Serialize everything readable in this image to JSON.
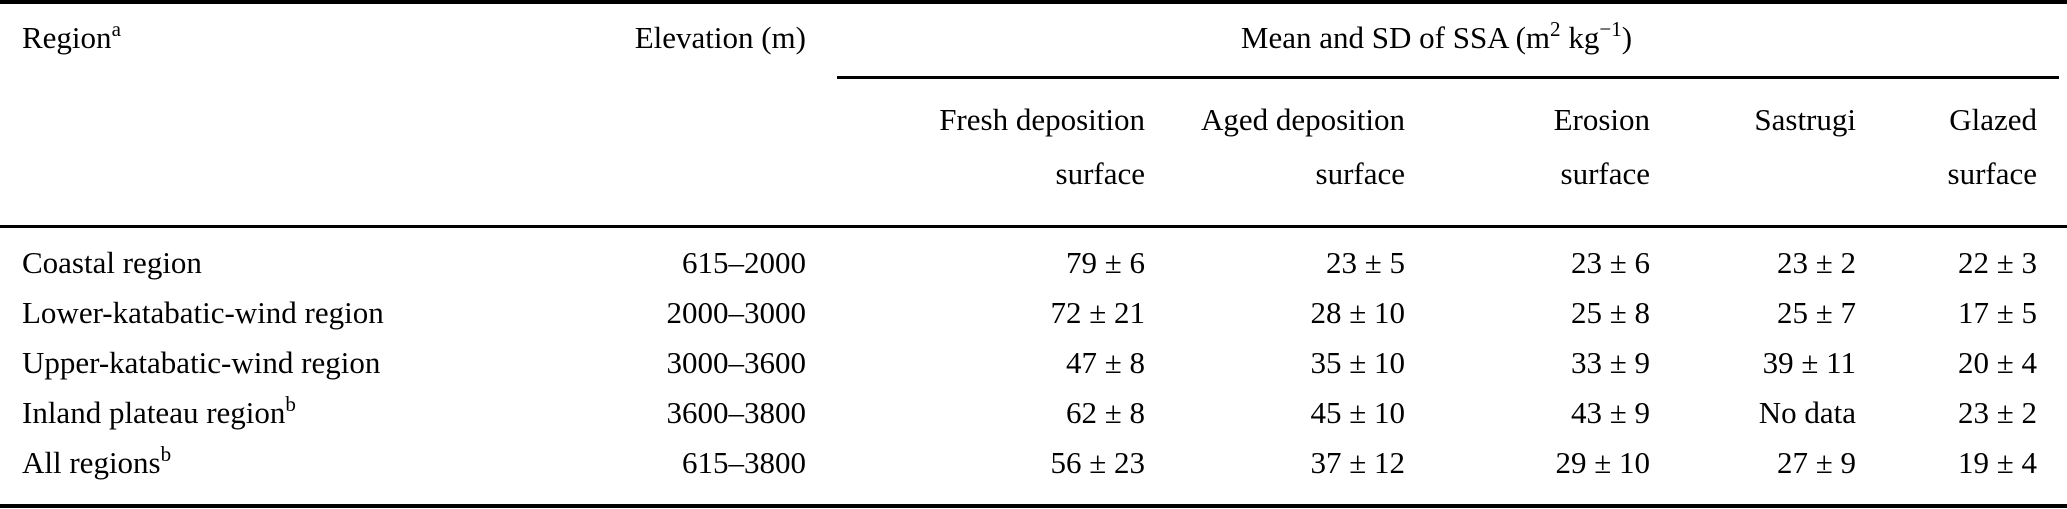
{
  "colors": {
    "text": "#000000",
    "background": "#ffffff",
    "rule": "#000000"
  },
  "table": {
    "header": {
      "region_label": "Region",
      "region_sup": "a",
      "elevation_label": "Elevation (m)",
      "ssa_group": {
        "prefix": "Mean and SD of SSA (m",
        "sup1": "2",
        "mid": " kg",
        "sup2": "−1",
        "suffix": ")"
      },
      "subcolumns": [
        {
          "line1": "Fresh deposition",
          "line2": "surface"
        },
        {
          "line1": "Aged deposition",
          "line2": "surface"
        },
        {
          "line1": "Erosion",
          "line2": "surface"
        },
        {
          "line1": "Sastrugi",
          "line2": ""
        },
        {
          "line1": "Glazed",
          "line2": "surface"
        }
      ]
    },
    "rows": [
      {
        "name": "Coastal region",
        "sup": "",
        "elevation": "615–2000",
        "values": [
          "79 ± 6",
          "23 ± 5",
          "23 ± 6",
          "23 ± 2",
          "22 ± 3"
        ]
      },
      {
        "name": "Lower-katabatic-wind region",
        "sup": "",
        "elevation": "2000–3000",
        "values": [
          "72 ± 21",
          "28 ± 10",
          "25 ± 8",
          "25 ± 7",
          "17 ± 5"
        ]
      },
      {
        "name": "Upper-katabatic-wind region",
        "sup": "",
        "elevation": "3000–3600",
        "values": [
          "47 ± 8",
          "35 ± 10",
          "33 ± 9",
          "39 ± 11",
          "20 ± 4"
        ]
      },
      {
        "name": "Inland plateau region",
        "sup": "b",
        "elevation": "3600–3800",
        "values": [
          "62 ± 8",
          "45 ± 10",
          "43 ± 9",
          "No data",
          "23 ± 2"
        ]
      },
      {
        "name": "All regions",
        "sup": "b",
        "elevation": "615–3800",
        "values": [
          "56 ± 23",
          "37 ± 12",
          "29 ± 10",
          "27 ± 9",
          "19 ± 4"
        ]
      }
    ]
  }
}
